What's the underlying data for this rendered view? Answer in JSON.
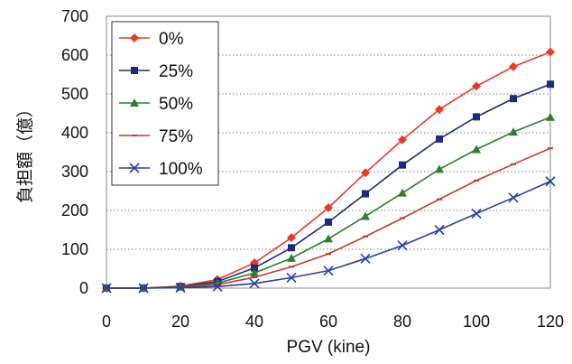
{
  "chart_data": {
    "type": "line",
    "title": "",
    "xlabel": "PGV (kine)",
    "ylabel": "負担額（億）",
    "xlim": [
      0,
      120
    ],
    "ylim": [
      0,
      700
    ],
    "x_ticks": [
      0,
      20,
      40,
      60,
      80,
      100,
      120
    ],
    "y_ticks": [
      0,
      100,
      200,
      300,
      400,
      500,
      600,
      700
    ],
    "x_tick_labels": [
      "0",
      "20",
      "40",
      "60",
      "80",
      "100",
      "120"
    ],
    "y_tick_labels": [
      "0",
      "100",
      "200",
      "300",
      "400",
      "500",
      "600",
      "700"
    ],
    "grid": "horizontal dotted",
    "legend_position": "top-left",
    "x": [
      0,
      10,
      20,
      30,
      40,
      50,
      60,
      70,
      80,
      90,
      100,
      110,
      120
    ],
    "series": [
      {
        "name": "0%",
        "color": "#e8392b",
        "marker": "diamond",
        "values": [
          0,
          0,
          5,
          22,
          65,
          130,
          207,
          297,
          382,
          460,
          520,
          570,
          608
        ]
      },
      {
        "name": "25%",
        "color": "#1f2a7a",
        "marker": "square",
        "values": [
          0,
          0,
          4,
          17,
          52,
          104,
          170,
          243,
          317,
          384,
          441,
          488,
          525
        ]
      },
      {
        "name": "50%",
        "color": "#2e7d32",
        "marker": "triangle",
        "values": [
          0,
          0,
          3,
          13,
          39,
          77,
          127,
          185,
          245,
          306,
          357,
          402,
          440
        ]
      },
      {
        "name": "75%",
        "color": "#c0392b",
        "marker": "dash",
        "values": [
          0,
          0,
          2,
          9,
          28,
          55,
          88,
          133,
          180,
          229,
          277,
          319,
          360
        ]
      },
      {
        "name": "100%",
        "color": "#2c3e9e",
        "marker": "x",
        "values": [
          0,
          0,
          1,
          4,
          12,
          27,
          45,
          76,
          110,
          150,
          192,
          233,
          275
        ]
      }
    ]
  }
}
